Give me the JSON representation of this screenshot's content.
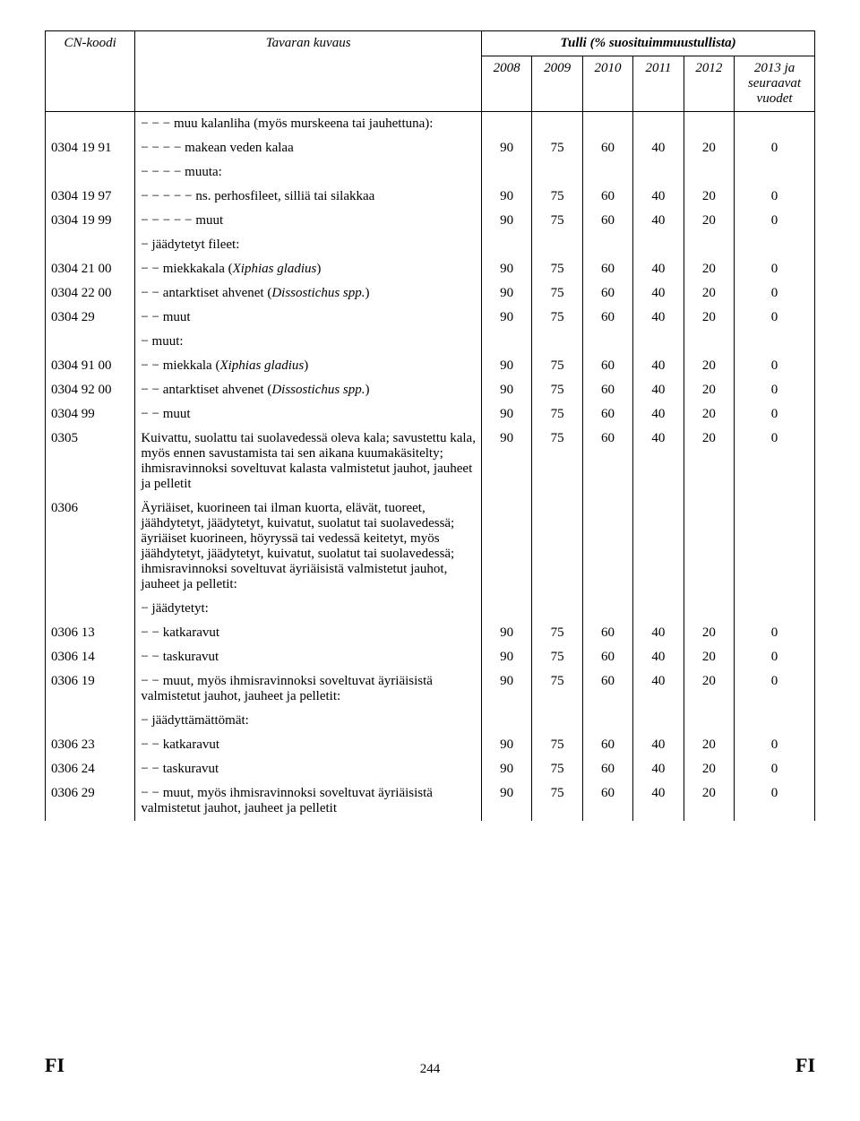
{
  "header": {
    "span_title": "Tulli (% suosituimmuustullista)",
    "cn_koodi": "CN-koodi",
    "tavaran_kuvaus": "Tavaran kuvaus",
    "years": [
      "2008",
      "2009",
      "2010",
      "2011",
      "2012"
    ],
    "last_col": "2013 ja seuraavat vuodet"
  },
  "rows": [
    {
      "code": "",
      "desc": "− − − muu kalanliha (myös murskeena tai jauhettuna):",
      "vals": null
    },
    {
      "code": "0304 19 91",
      "desc": "− − − − makean veden kalaa",
      "vals": [
        "90",
        "75",
        "60",
        "40",
        "20",
        "0"
      ]
    },
    {
      "code": "",
      "desc": "− − − − muuta:",
      "vals": null
    },
    {
      "code": "0304 19 97",
      "desc": "− − − − − ns. perhosfileet, silliä tai silakkaa",
      "vals": [
        "90",
        "75",
        "60",
        "40",
        "20",
        "0"
      ]
    },
    {
      "code": "0304 19 99",
      "desc": "− − − − − muut",
      "vals": [
        "90",
        "75",
        "60",
        "40",
        "20",
        "0"
      ]
    },
    {
      "code": "",
      "desc": "− jäädytetyt fileet:",
      "vals": null
    },
    {
      "code": "0304 21 00",
      "desc": "− − miekkakala (Xiphias gladius)",
      "vals": [
        "90",
        "75",
        "60",
        "40",
        "20",
        "0"
      ]
    },
    {
      "code": "0304 22 00",
      "desc": "− − antarktiset ahvenet (Dissostichus spp.)",
      "vals": [
        "90",
        "75",
        "60",
        "40",
        "20",
        "0"
      ]
    },
    {
      "code": "0304 29",
      "desc": "− − muut",
      "vals": [
        "90",
        "75",
        "60",
        "40",
        "20",
        "0"
      ]
    },
    {
      "code": "",
      "desc": "− muut:",
      "vals": null
    },
    {
      "code": "0304 91 00",
      "desc": "− − miekkala (Xiphias gladius)",
      "vals": [
        "90",
        "75",
        "60",
        "40",
        "20",
        "0"
      ]
    },
    {
      "code": "0304 92 00",
      "desc": "− − antarktiset ahvenet (Dissostichus spp.)",
      "vals": [
        "90",
        "75",
        "60",
        "40",
        "20",
        "0"
      ]
    },
    {
      "code": "0304 99",
      "desc": "− − muut",
      "vals": [
        "90",
        "75",
        "60",
        "40",
        "20",
        "0"
      ]
    },
    {
      "code": "0305",
      "desc": "Kuivattu, suolattu tai suolavedessä oleva kala; savustettu kala, myös ennen savustamista tai sen aikana kuumakäsitelty; ihmisravinnoksi soveltuvat kalasta valmistetut jauhot, jauheet ja pelletit",
      "vals": [
        "90",
        "75",
        "60",
        "40",
        "20",
        "0"
      ]
    },
    {
      "code": "0306",
      "desc": "Äyriäiset, kuorineen tai ilman kuorta, elävät, tuoreet, jäähdytetyt, jäädytetyt, kuivatut, suolatut tai suolavedessä; äyriäiset kuorineen, höyryssä tai vedessä keitetyt, myös jäähdytetyt, jäädytetyt, kuivatut, suolatut tai suolavedessä; ihmisravinnoksi soveltuvat äyriäisistä valmistetut jauhot, jauheet ja pelletit:",
      "vals": null
    },
    {
      "code": "",
      "desc": "− jäädytetyt:",
      "vals": null
    },
    {
      "code": "0306 13",
      "desc": "− − katkaravut",
      "vals": [
        "90",
        "75",
        "60",
        "40",
        "20",
        "0"
      ]
    },
    {
      "code": "0306 14",
      "desc": "− − taskuravut",
      "vals": [
        "90",
        "75",
        "60",
        "40",
        "20",
        "0"
      ]
    },
    {
      "code": "0306 19",
      "desc": "− − muut, myös ihmisravinnoksi soveltuvat äyriäisistä valmistetut jauhot, jauheet ja pelletit:",
      "vals": [
        "90",
        "75",
        "60",
        "40",
        "20",
        "0"
      ]
    },
    {
      "code": "",
      "desc": "− jäädyttämättömät:",
      "vals": null
    },
    {
      "code": "0306 23",
      "desc": "− − katkaravut",
      "vals": [
        "90",
        "75",
        "60",
        "40",
        "20",
        "0"
      ]
    },
    {
      "code": "0306 24",
      "desc": "− − taskuravut",
      "vals": [
        "90",
        "75",
        "60",
        "40",
        "20",
        "0"
      ]
    },
    {
      "code": "0306 29",
      "desc": "− − muut, myös ihmisravinnoksi soveltuvat äyriäisistä valmistetut jauhot, jauheet ja pelletit",
      "vals": [
        "90",
        "75",
        "60",
        "40",
        "20",
        "0"
      ]
    }
  ],
  "italic_markers": [
    "Xiphias gladius",
    "Dissostichus"
  ],
  "footer": {
    "left": "FI",
    "page": "244",
    "right": "FI"
  }
}
